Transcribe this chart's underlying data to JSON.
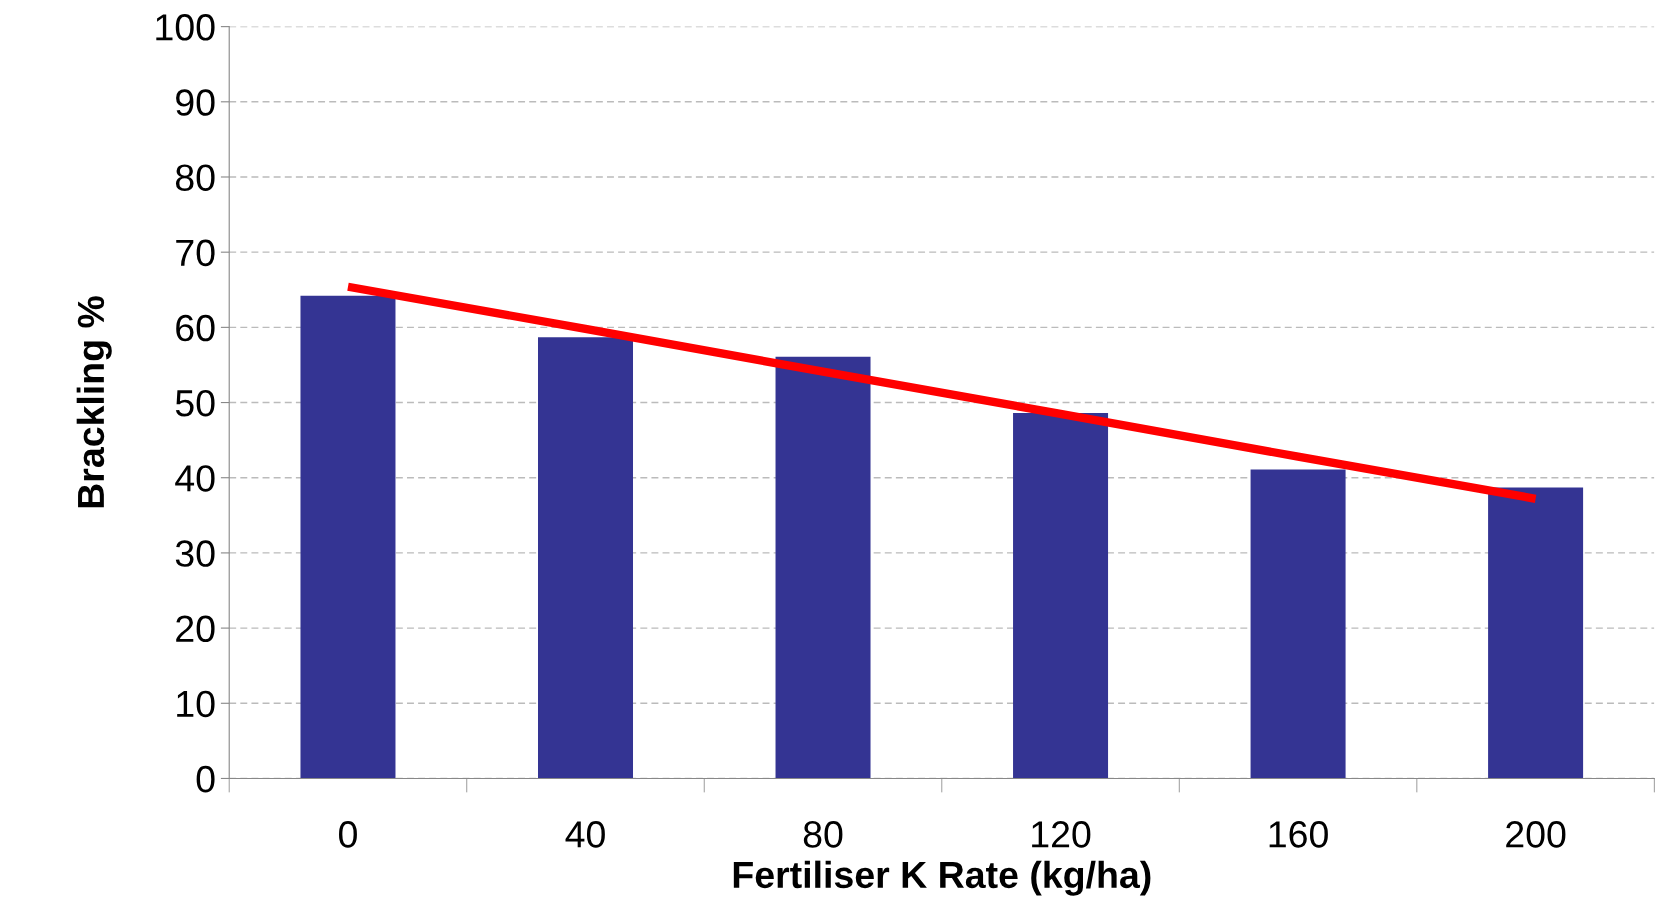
{
  "chart_data": {
    "type": "bar",
    "xlabel": "Fertiliser K Rate (kg/ha)",
    "ylabel": "Brackling %",
    "categories": [
      "0",
      "40",
      "80",
      "120",
      "160",
      "200"
    ],
    "series": [
      {
        "color": "#343493",
        "values": [
          64.2,
          58.7,
          56.1,
          48.6,
          41.1,
          38.7
        ]
      },
      {
        "type": "line",
        "color": "#ff0000",
        "values": [
          65.4,
          59.8,
          54.1,
          48.5,
          42.8,
          37.2
        ]
      }
    ],
    "ylim": [
      0,
      100
    ],
    "yticks": [
      0,
      10,
      20,
      30,
      40,
      50,
      60,
      70,
      80,
      90,
      100
    ],
    "grid": "y",
    "legend": false,
    "line_style": "solid",
    "marker": "none"
  }
}
